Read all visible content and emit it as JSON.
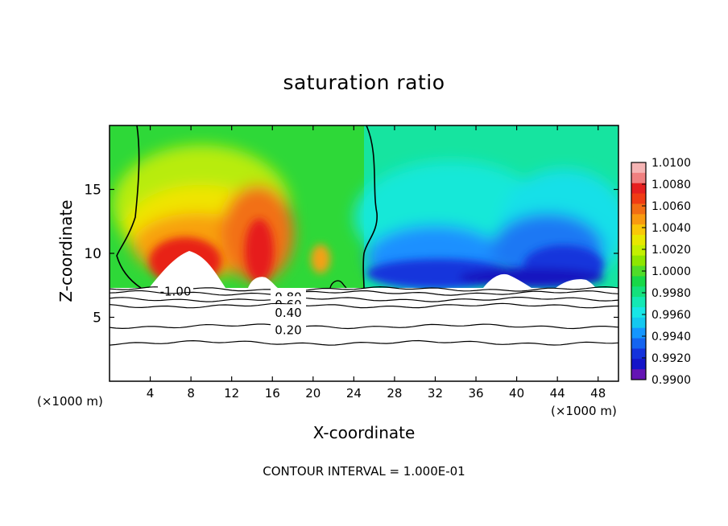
{
  "chart_data": {
    "type": "heatmap",
    "title": "saturation ratio",
    "xlabel": "X-coordinate",
    "ylabel": "Z-coordinate",
    "x_unit_label": "(×1000 m)",
    "xlim": [
      0,
      50
    ],
    "ylim": [
      0,
      20
    ],
    "x_ticks": [
      4,
      8,
      12,
      16,
      20,
      24,
      28,
      32,
      36,
      40,
      44,
      48
    ],
    "y_ticks": [
      5,
      10,
      15
    ],
    "colorbar": {
      "ticks": [
        "1.0100",
        "1.0080",
        "1.0060",
        "1.0040",
        "1.0020",
        "1.0000",
        "0.9980",
        "0.9960",
        "0.9940",
        "0.9920",
        "0.9900"
      ],
      "colors": [
        "#f5b4b4",
        "#f08080",
        "#e62020",
        "#f03c14",
        "#f26e14",
        "#f99a10",
        "#f9c808",
        "#e8e800",
        "#c3f000",
        "#8ee600",
        "#50dc28",
        "#18d848",
        "#14e07c",
        "#14e8b4",
        "#18e6e6",
        "#14c8f0",
        "#1496ff",
        "#1464f0",
        "#1432dc",
        "#1414c8",
        "#6414b4"
      ]
    },
    "contour_lines": [
      {
        "label": "1.00",
        "z_mean": 7.2
      },
      {
        "label": "0.80",
        "z_mean": 6.9
      },
      {
        "label": "0.60",
        "z_mean": 6.4
      },
      {
        "label": "0.40",
        "z_mean": 5.9
      },
      {
        "label": "0.20",
        "z_mean": 4.3
      },
      {
        "label": "",
        "z_mean": 3.0
      }
    ],
    "contour_interval_text": "CONTOUR INTERVAL = 1.000E-01"
  }
}
